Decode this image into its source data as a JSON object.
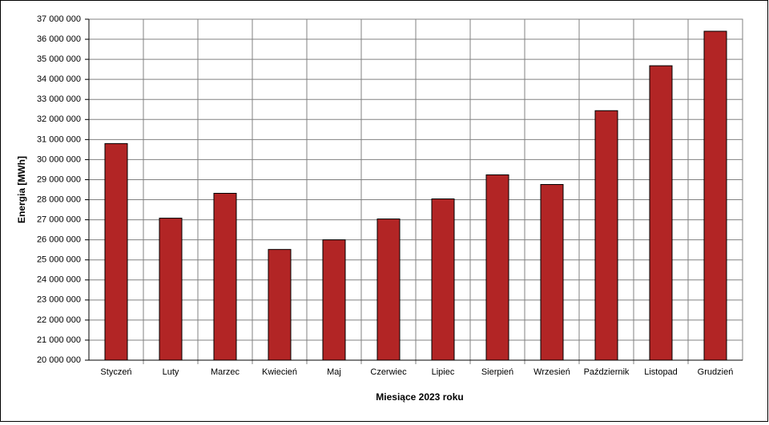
{
  "chart_data": {
    "type": "bar",
    "x_label": "Miesiące 2023  roku",
    "y_label": "Energia [MWh]",
    "categories": [
      "Styczeń",
      "Luty",
      "Marzec",
      "Kwiecień",
      "Maj",
      "Czerwiec",
      "Lipiec",
      "Sierpień",
      "Wrzesień",
      "Październik",
      "Listopad",
      "Grudzień"
    ],
    "values": [
      30800000,
      27080000,
      28320000,
      25520000,
      26000000,
      27040000,
      28040000,
      29240000,
      28760000,
      32440000,
      34680000,
      36400000
    ],
    "color": "#b22525",
    "ylim": [
      20000000,
      37000000
    ],
    "yticks": [
      {
        "value": 20000000,
        "label": "20 000 000"
      },
      {
        "value": 21000000,
        "label": "21 000 000"
      },
      {
        "value": 22000000,
        "label": "22 000 000"
      },
      {
        "value": 23000000,
        "label": "23 000 000"
      },
      {
        "value": 24000000,
        "label": "24 000 000"
      },
      {
        "value": 25000000,
        "label": "25 000 000"
      },
      {
        "value": 26000000,
        "label": "26 000 000"
      },
      {
        "value": 27000000,
        "label": "27 000 000"
      },
      {
        "value": 28000000,
        "label": "28 000 000"
      },
      {
        "value": 29000000,
        "label": "29 000 000"
      },
      {
        "value": 30000000,
        "label": "30 000 000"
      },
      {
        "value": 31000000,
        "label": "31 000 000"
      },
      {
        "value": 32000000,
        "label": "32 000 000"
      },
      {
        "value": 33000000,
        "label": "33 000 000"
      },
      {
        "value": 34000000,
        "label": "34 000 000"
      },
      {
        "value": 35000000,
        "label": "35 000 000"
      },
      {
        "value": 36000000,
        "label": "36 000 000"
      },
      {
        "value": 37000000,
        "label": "37 000 000"
      }
    ],
    "grid": true
  }
}
